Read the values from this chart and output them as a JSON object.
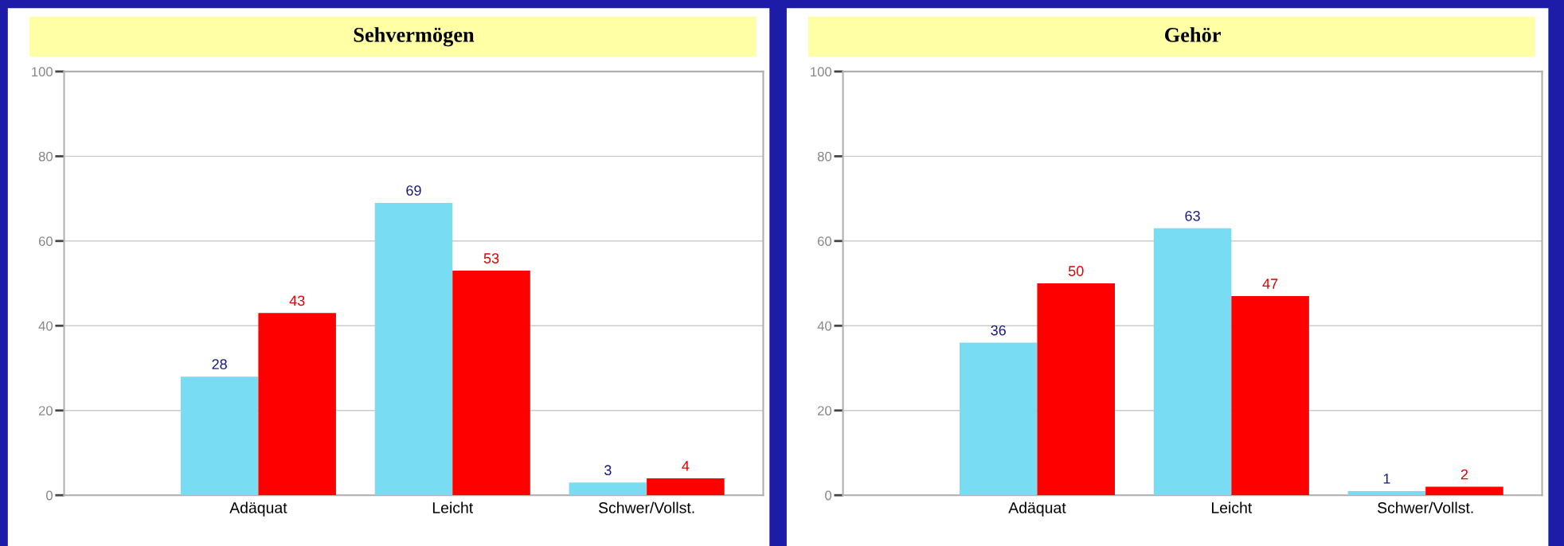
{
  "chart_data": [
    {
      "type": "bar",
      "title": "Sehvermögen",
      "categories": [
        "Adäquat",
        "Leicht",
        "Schwer/Vollst."
      ],
      "series": [
        {
          "color": "#78dcf2",
          "values": [
            28,
            69,
            3
          ]
        },
        {
          "color": "#ff0000",
          "values": [
            43,
            53,
            4
          ]
        }
      ],
      "ylim": [
        0,
        100
      ],
      "yticks": [
        0,
        20,
        40,
        60,
        80,
        100
      ],
      "grid": "y",
      "data_labels": true,
      "legend": false
    },
    {
      "type": "bar",
      "title": "Gehör",
      "categories": [
        "Adäquat",
        "Leicht",
        "Schwer/Vollst."
      ],
      "series": [
        {
          "color": "#78dcf2",
          "values": [
            36,
            63,
            1
          ]
        },
        {
          "color": "#ff0000",
          "values": [
            50,
            47,
            2
          ]
        }
      ],
      "ylim": [
        0,
        100
      ],
      "yticks": [
        0,
        20,
        40,
        60,
        80,
        100
      ],
      "grid": "y",
      "data_labels": true,
      "legend": false
    }
  ]
}
